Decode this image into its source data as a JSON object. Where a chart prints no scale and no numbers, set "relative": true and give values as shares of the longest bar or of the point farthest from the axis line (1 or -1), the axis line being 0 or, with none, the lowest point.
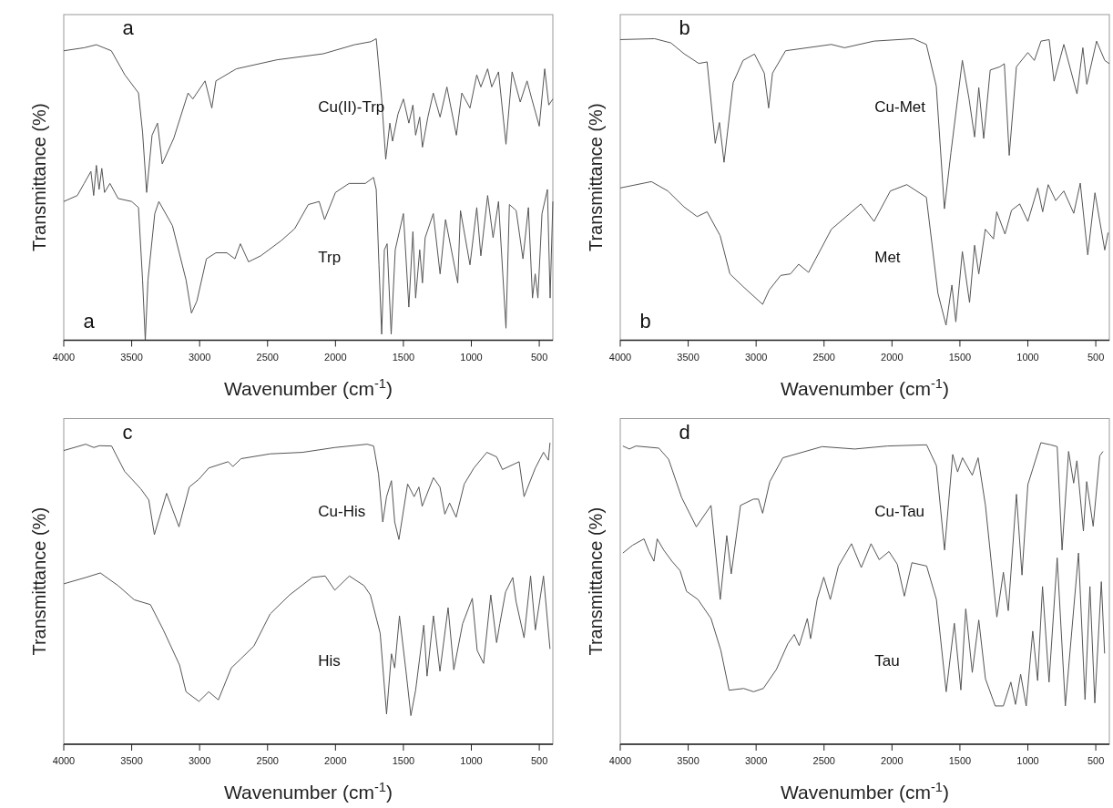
{
  "chart_data": [
    {
      "type": "line",
      "relative": true,
      "xlabel": "Wavenumber (cm$^{-1}$)",
      "ylabel": "Transmittance (%)",
      "xlim": [
        4000,
        400
      ],
      "xticks": [
        4000,
        3500,
        3000,
        2500,
        2000,
        1500,
        1000,
        500
      ],
      "annotations": [
        "a",
        "a"
      ],
      "series": [
        {
          "name": "Cu(II)-Trp",
          "color": "#555555",
          "x": [
            4000,
            3850,
            3760,
            3650,
            3550,
            3450,
            3420,
            3390,
            3350,
            3310,
            3275,
            3190,
            3085,
            3050,
            2960,
            2910,
            2880,
            2730,
            2430,
            2090,
            1860,
            1740,
            1700,
            1660,
            1630,
            1600,
            1580,
            1540,
            1500,
            1460,
            1430,
            1410,
            1380,
            1360,
            1320,
            1280,
            1230,
            1180,
            1110,
            1070,
            1010,
            960,
            930,
            880,
            850,
            800,
            745,
            700,
            640,
            590,
            555,
            500,
            460,
            430,
            400
          ],
          "values": [
            0.96,
            0.97,
            0.98,
            0.96,
            0.88,
            0.82,
            0.69,
            0.49,
            0.68,
            0.72,
            0.585,
            0.67,
            0.82,
            0.8,
            0.86,
            0.77,
            0.86,
            0.9,
            0.93,
            0.95,
            0.98,
            0.99,
            1.0,
            0.8,
            0.6,
            0.72,
            0.66,
            0.75,
            0.8,
            0.72,
            0.78,
            0.68,
            0.74,
            0.64,
            0.74,
            0.82,
            0.74,
            0.84,
            0.68,
            0.82,
            0.77,
            0.88,
            0.84,
            0.9,
            0.84,
            0.89,
            0.65,
            0.89,
            0.79,
            0.86,
            0.8,
            0.71,
            0.9,
            0.78,
            0.8
          ]
        },
        {
          "name": "Trp",
          "color": "#555555",
          "x": [
            4000,
            3900,
            3850,
            3800,
            3780,
            3760,
            3740,
            3720,
            3700,
            3660,
            3600,
            3500,
            3450,
            3420,
            3400,
            3380,
            3330,
            3300,
            3200,
            3100,
            3060,
            3020,
            2950,
            2880,
            2800,
            2740,
            2700,
            2640,
            2550,
            2400,
            2300,
            2200,
            2120,
            2080,
            2000,
            1900,
            1780,
            1720,
            1700,
            1680,
            1660,
            1640,
            1620,
            1590,
            1560,
            1500,
            1460,
            1430,
            1410,
            1380,
            1360,
            1340,
            1280,
            1230,
            1190,
            1100,
            1080,
            1010,
            960,
            930,
            880,
            840,
            800,
            745,
            720,
            670,
            620,
            580,
            550,
            530,
            510,
            480,
            440,
            420,
            400
          ],
          "values": [
            0.46,
            0.48,
            0.52,
            0.56,
            0.48,
            0.58,
            0.5,
            0.57,
            0.49,
            0.52,
            0.47,
            0.46,
            0.44,
            0.2,
            0.0,
            0.2,
            0.42,
            0.46,
            0.38,
            0.2,
            0.09,
            0.13,
            0.27,
            0.29,
            0.29,
            0.27,
            0.32,
            0.26,
            0.28,
            0.33,
            0.37,
            0.45,
            0.46,
            0.4,
            0.49,
            0.52,
            0.52,
            0.54,
            0.5,
            0.25,
            0.02,
            0.3,
            0.32,
            0.02,
            0.3,
            0.42,
            0.11,
            0.36,
            0.14,
            0.3,
            0.19,
            0.34,
            0.42,
            0.22,
            0.4,
            0.19,
            0.43,
            0.25,
            0.44,
            0.28,
            0.48,
            0.34,
            0.46,
            0.04,
            0.45,
            0.43,
            0.27,
            0.44,
            0.14,
            0.22,
            0.14,
            0.42,
            0.5,
            0.14,
            0.46
          ]
        }
      ]
    },
    {
      "type": "line",
      "relative": true,
      "xlabel": "Wavenumber (cm$^{-1}$)",
      "ylabel": "Transmittance (%)",
      "xlim": [
        4000,
        400
      ],
      "xticks": [
        4000,
        3500,
        3000,
        2500,
        2000,
        1500,
        1000,
        500
      ],
      "annotations": [
        "b",
        "b"
      ],
      "series": [
        {
          "name": "Cu-Met",
          "color": "#555555",
          "x": [
            4000,
            3747,
            3627,
            3530,
            3422,
            3361,
            3301,
            3270,
            3236,
            3169,
            3096,
            3012,
            2940,
            2908,
            2879,
            2783,
            2446,
            2349,
            2132,
            1843,
            1747,
            1674,
            1614,
            1566,
            1482,
            1433,
            1392,
            1361,
            1325,
            1277,
            1205,
            1173,
            1137,
            1084,
            1000,
            952,
            903,
            843,
            807,
            735,
            638,
            595,
            566,
            494,
            434,
            400
          ],
          "values": [
            0.997,
            1.0,
            0.986,
            0.95,
            0.918,
            0.923,
            0.653,
            0.722,
            0.59,
            0.854,
            0.928,
            0.949,
            0.886,
            0.77,
            0.886,
            0.96,
            0.981,
            0.97,
            0.992,
            1.0,
            0.981,
            0.843,
            0.436,
            0.622,
            0.928,
            0.801,
            0.674,
            0.838,
            0.669,
            0.896,
            0.907,
            0.917,
            0.613,
            0.907,
            0.954,
            0.928,
            0.992,
            0.997,
            0.859,
            0.981,
            0.817,
            0.97,
            0.849,
            0.992,
            0.928,
            0.917
          ]
        },
        {
          "name": "Met",
          "color": "#555555",
          "x": [
            4000,
            3771,
            3650,
            3530,
            3434,
            3361,
            3265,
            3193,
            3096,
            2952,
            2903,
            2819,
            2747,
            2687,
            2614,
            2446,
            2229,
            2132,
            2012,
            1891,
            1747,
            1662,
            1602,
            1559,
            1530,
            1482,
            1429,
            1392,
            1361,
            1313,
            1253,
            1229,
            1168,
            1120,
            1060,
            1000,
            927,
            891,
            850,
            795,
            735,
            662,
            614,
            559,
            506,
            434,
            409
          ],
          "values": [
            0.505,
            0.526,
            0.495,
            0.442,
            0.41,
            0.426,
            0.347,
            0.22,
            0.178,
            0.119,
            0.167,
            0.215,
            0.22,
            0.252,
            0.225,
            0.368,
            0.452,
            0.394,
            0.495,
            0.516,
            0.474,
            0.156,
            0.05,
            0.183,
            0.061,
            0.294,
            0.125,
            0.315,
            0.22,
            0.368,
            0.336,
            0.426,
            0.352,
            0.431,
            0.452,
            0.394,
            0.505,
            0.426,
            0.516,
            0.463,
            0.495,
            0.421,
            0.521,
            0.283,
            0.489,
            0.299,
            0.357
          ]
        }
      ]
    },
    {
      "type": "line",
      "relative": true,
      "xlabel": "Wavenumber (cm$^{-1}$)",
      "ylabel": "Transmittance (%)",
      "xlim": [
        4000,
        400
      ],
      "xticks": [
        4000,
        3500,
        3000,
        2500,
        2000,
        1500,
        1000,
        500
      ],
      "annotations": [
        "c"
      ],
      "series": [
        {
          "name": "Cu-His",
          "color": "#555555",
          "x": [
            4000,
            3838,
            3779,
            3738,
            3648,
            3552,
            3433,
            3374,
            3333,
            3243,
            3152,
            3076,
            3005,
            2933,
            2790,
            2755,
            2695,
            2481,
            2243,
            2005,
            1767,
            1719,
            1683,
            1652,
            1624,
            1588,
            1564,
            1533,
            1469,
            1421,
            1386,
            1362,
            1279,
            1231,
            1195,
            1160,
            1112,
            1052,
            981,
            886,
            814,
            771,
            648,
            612,
            529,
            469,
            433,
            421
          ],
          "values": [
            0.974,
            0.995,
            0.984,
            0.99,
            0.989,
            0.905,
            0.847,
            0.81,
            0.695,
            0.832,
            0.721,
            0.853,
            0.879,
            0.916,
            0.937,
            0.921,
            0.947,
            0.963,
            0.968,
            0.984,
            0.995,
            0.989,
            0.895,
            0.737,
            0.821,
            0.874,
            0.737,
            0.679,
            0.863,
            0.821,
            0.853,
            0.789,
            0.884,
            0.853,
            0.763,
            0.8,
            0.753,
            0.863,
            0.916,
            0.968,
            0.953,
            0.911,
            0.937,
            0.821,
            0.916,
            0.968,
            0.942,
            1.0
          ]
        },
        {
          "name": "His",
          "color": "#555555",
          "x": [
            4000,
            3838,
            3731,
            3600,
            3481,
            3362,
            3267,
            3148,
            3100,
            3005,
            2933,
            2862,
            2767,
            2695,
            2600,
            2481,
            2338,
            2171,
            2076,
            2005,
            1898,
            1790,
            1743,
            1671,
            1624,
            1588,
            1564,
            1529,
            1481,
            1445,
            1410,
            1350,
            1326,
            1279,
            1231,
            1171,
            1129,
            1064,
            993,
            957,
            910,
            857,
            814,
            790,
            748,
            695,
            671,
            612,
            564,
            529,
            469,
            421
          ],
          "values": [
            0.532,
            0.553,
            0.568,
            0.526,
            0.479,
            0.463,
            0.379,
            0.263,
            0.174,
            0.142,
            0.174,
            0.147,
            0.253,
            0.284,
            0.326,
            0.432,
            0.495,
            0.553,
            0.558,
            0.511,
            0.558,
            0.526,
            0.495,
            0.368,
            0.1,
            0.3,
            0.253,
            0.426,
            0.242,
            0.095,
            0.179,
            0.395,
            0.226,
            0.426,
            0.242,
            0.453,
            0.247,
            0.4,
            0.484,
            0.311,
            0.268,
            0.495,
            0.337,
            0.4,
            0.505,
            0.553,
            0.474,
            0.353,
            0.558,
            0.379,
            0.558,
            0.316
          ]
        }
      ]
    },
    {
      "type": "line",
      "relative": true,
      "xlabel": "Wavenumber (cm$^{-1}$)",
      "ylabel": "Transmittance (%)",
      "xlim": [
        4000,
        400
      ],
      "xticks": [
        4000,
        3500,
        3000,
        2500,
        2000,
        1500,
        1000,
        500
      ],
      "annotations": [
        "d"
      ],
      "series": [
        {
          "name": "Cu-Tau",
          "color": "#555555",
          "x": [
            3981,
            3933,
            3885,
            3716,
            3644,
            3548,
            3440,
            3332,
            3264,
            3216,
            3183,
            3115,
            3019,
            2983,
            2952,
            2899,
            2803,
            2514,
            2274,
            2034,
            1745,
            1673,
            1613,
            1553,
            1517,
            1481,
            1409,
            1366,
            1312,
            1228,
            1180,
            1144,
            1084,
            1043,
            1000,
            964,
            904,
            832,
            784,
            748,
            700,
            663,
            639,
            591,
            567,
            519,
            471,
            447
          ],
          "values": [
            0.989,
            0.979,
            0.989,
            0.982,
            0.945,
            0.818,
            0.721,
            0.792,
            0.48,
            0.692,
            0.565,
            0.792,
            0.813,
            0.813,
            0.766,
            0.871,
            0.95,
            0.987,
            0.979,
            0.989,
            0.993,
            0.924,
            0.644,
            0.961,
            0.903,
            0.95,
            0.892,
            0.95,
            0.792,
            0.422,
            0.57,
            0.443,
            0.829,
            0.561,
            0.861,
            0.913,
            1.0,
            0.993,
            0.987,
            0.644,
            0.971,
            0.866,
            0.94,
            0.707,
            0.871,
            0.723,
            0.956,
            0.971
          ]
        },
        {
          "name": "Tau",
          "color": "#555555",
          "x": [
            3981,
            3909,
            3825,
            3788,
            3752,
            3728,
            3680,
            3620,
            3560,
            3512,
            3428,
            3332,
            3260,
            3199,
            3091,
            3019,
            2947,
            2851,
            2767,
            2719,
            2683,
            2623,
            2599,
            2551,
            2502,
            2454,
            2394,
            2298,
            2226,
            2154,
            2094,
            2022,
            1961,
            1909,
            1853,
            1745,
            1673,
            1601,
            1541,
            1493,
            1457,
            1409,
            1361,
            1312,
            1240,
            1180,
            1125,
            1091,
            1053,
            1012,
            964,
            928,
            892,
            844,
            784,
            724,
            627,
            579,
            543,
            507,
            459,
            435
          ],
          "values": [
            0.634,
            0.66,
            0.681,
            0.639,
            0.607,
            0.681,
            0.644,
            0.607,
            0.576,
            0.507,
            0.48,
            0.417,
            0.312,
            0.179,
            0.185,
            0.174,
            0.185,
            0.248,
            0.333,
            0.364,
            0.327,
            0.417,
            0.35,
            0.48,
            0.554,
            0.48,
            0.591,
            0.665,
            0.586,
            0.665,
            0.612,
            0.639,
            0.597,
            0.491,
            0.602,
            0.591,
            0.48,
            0.174,
            0.401,
            0.18,
            0.449,
            0.238,
            0.412,
            0.217,
            0.127,
            0.127,
            0.206,
            0.132,
            0.232,
            0.127,
            0.375,
            0.211,
            0.523,
            0.206,
            0.618,
            0.127,
            0.634,
            0.148,
            0.523,
            0.137,
            0.539,
            0.301
          ]
        }
      ]
    }
  ]
}
